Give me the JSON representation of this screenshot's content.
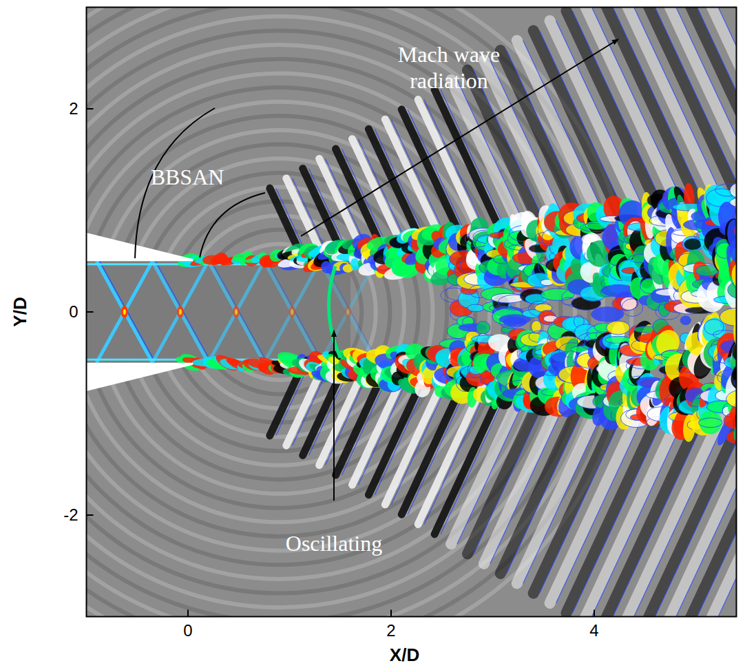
{
  "chart_data": {
    "type": "field",
    "x_label": "X/D",
    "y_label": "Y/D",
    "xlim": [
      -1,
      5.4
    ],
    "ylim": [
      -3,
      3
    ],
    "xticks": [
      0,
      2,
      4
    ],
    "yticks": [
      -2,
      0,
      2
    ],
    "annotations": [
      "Mach wave radiation",
      "BBSAN",
      "Oscillating"
    ]
  }
}
